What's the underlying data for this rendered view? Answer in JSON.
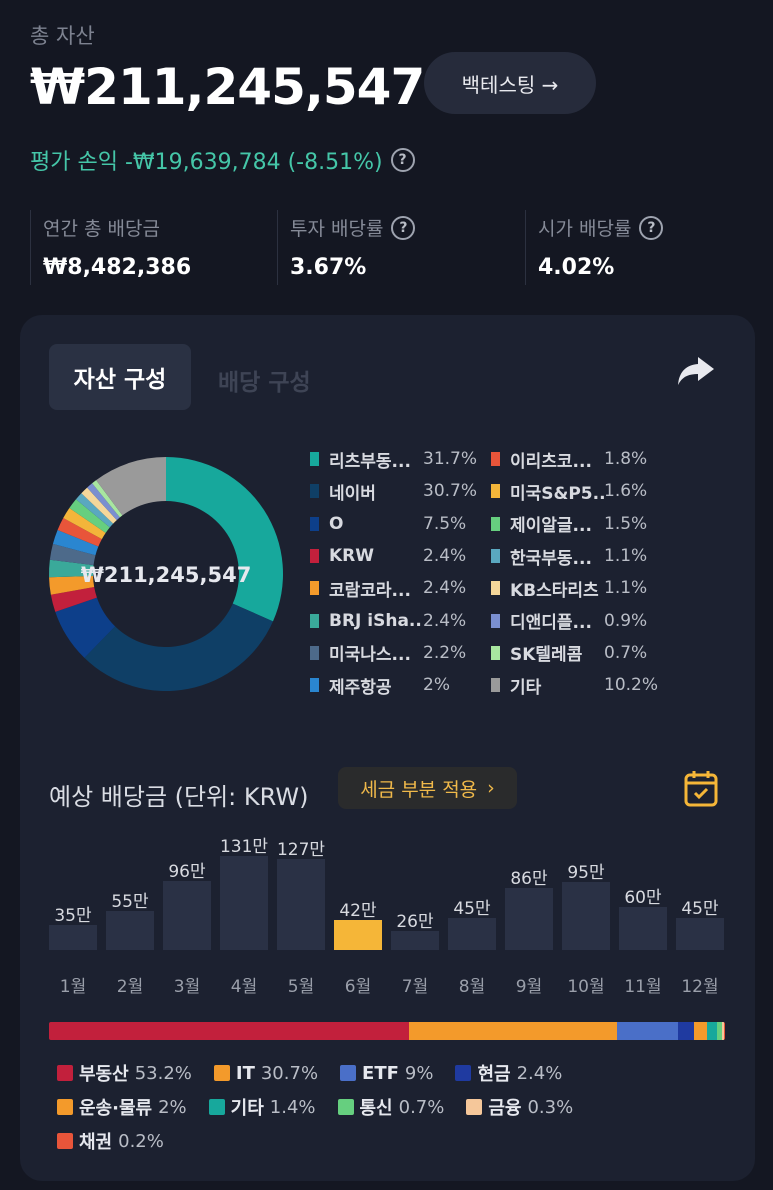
{
  "header": {
    "total_label": "총 자산",
    "total_value": "₩211,245,547",
    "backtest_label": "백테스팅 →",
    "pnl_text": "평가 손익 -₩19,639,784 (-8.51%)",
    "help_glyph": "?"
  },
  "stats": [
    {
      "label": "연간 총 배당금",
      "value": "₩8,482,386",
      "help": false
    },
    {
      "label": "투자 배당률",
      "value": "3.67%",
      "help": true
    },
    {
      "label": "시가 배당률",
      "value": "4.02%",
      "help": true
    }
  ],
  "tabs": {
    "active": "자산 구성",
    "inactive": "배당 구성"
  },
  "donut_center": "₩211,245,547",
  "holdings": [
    {
      "name": "리츠부동...",
      "pct": "31.7%",
      "value": 31.7,
      "color": "#17a89c"
    },
    {
      "name": "네이버",
      "pct": "30.7%",
      "value": 30.7,
      "color": "#0f3f66"
    },
    {
      "name": "O",
      "pct": "7.5%",
      "value": 7.5,
      "color": "#0d3f8a"
    },
    {
      "name": "KRW",
      "pct": "2.4%",
      "value": 2.4,
      "color": "#c2203c"
    },
    {
      "name": "코람코라...",
      "pct": "2.4%",
      "value": 2.4,
      "color": "#f39a2b"
    },
    {
      "name": "BRJ iSha...",
      "pct": "2.4%",
      "value": 2.4,
      "color": "#3aa99a"
    },
    {
      "name": "미국나스...",
      "pct": "2.2%",
      "value": 2.2,
      "color": "#4d6a8a"
    },
    {
      "name": "제주항공",
      "pct": "2%",
      "value": 2.0,
      "color": "#2a86d0"
    },
    {
      "name": "이리츠코...",
      "pct": "1.8%",
      "value": 1.8,
      "color": "#e8553a"
    },
    {
      "name": "미국S&P5...",
      "pct": "1.6%",
      "value": 1.6,
      "color": "#f3b53a"
    },
    {
      "name": "제이알글...",
      "pct": "1.5%",
      "value": 1.5,
      "color": "#66cf7f"
    },
    {
      "name": "한국부동...",
      "pct": "1.1%",
      "value": 1.1,
      "color": "#5aa8c0"
    },
    {
      "name": "KB스타리츠",
      "pct": "1.1%",
      "value": 1.1,
      "color": "#f5d79a"
    },
    {
      "name": "디앤디플...",
      "pct": "0.9%",
      "value": 0.9,
      "color": "#7a8fd0"
    },
    {
      "name": "SK텔레콤",
      "pct": "0.7%",
      "value": 0.7,
      "color": "#a8e6a0"
    },
    {
      "name": "기타",
      "pct": "10.2%",
      "value": 10.2,
      "color": "#9a9a9a"
    }
  ],
  "dividend": {
    "title": "예상 배당금 (단위: KRW)",
    "tax_chip": "세금 부분 적용",
    "tax_chevron": "›"
  },
  "chart_data": {
    "type": "bar",
    "categories": [
      "1월",
      "2월",
      "3월",
      "4월",
      "5월",
      "6월",
      "7월",
      "8월",
      "9월",
      "10월",
      "11월",
      "12월"
    ],
    "values": [
      35,
      55,
      96,
      131,
      127,
      42,
      26,
      45,
      86,
      95,
      60,
      45
    ],
    "labels": [
      "35만",
      "55만",
      "96만",
      "131만",
      "127만",
      "42만",
      "26만",
      "45만",
      "86만",
      "95만",
      "60만",
      "45만"
    ],
    "highlight_index": 5,
    "bar_color": "#2a3145",
    "highlight_color": "#f5b638",
    "ylim": [
      0,
      131
    ]
  },
  "sectors": [
    {
      "name": "부동산",
      "pct": "53.2%",
      "value": 53.2,
      "color": "#c2203c"
    },
    {
      "name": "IT",
      "pct": "30.7%",
      "value": 30.7,
      "color": "#f39a2b"
    },
    {
      "name": "ETF",
      "pct": "9%",
      "value": 9.0,
      "color": "#4a6fc8"
    },
    {
      "name": "현금",
      "pct": "2.4%",
      "value": 2.4,
      "color": "#1f3aa0"
    },
    {
      "name": "운송·물류",
      "pct": "2%",
      "value": 2.0,
      "color": "#f39a2b"
    },
    {
      "name": "기타",
      "pct": "1.4%",
      "value": 1.4,
      "color": "#17a89c"
    },
    {
      "name": "통신",
      "pct": "0.7%",
      "value": 0.7,
      "color": "#66cf7f"
    },
    {
      "name": "금융",
      "pct": "0.3%",
      "value": 0.3,
      "color": "#f5c79a"
    },
    {
      "name": "채권",
      "pct": "0.2%",
      "value": 0.2,
      "color": "#e8553a"
    }
  ]
}
